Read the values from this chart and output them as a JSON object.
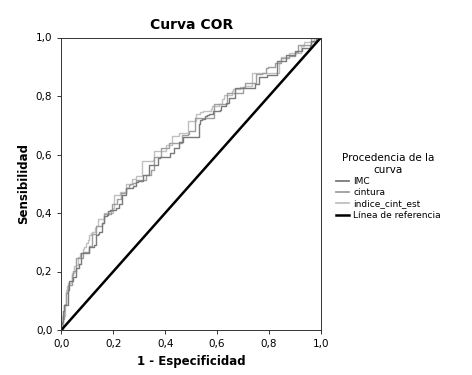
{
  "title": "Curva COR",
  "xlabel": "1 - Especificidad",
  "ylabel": "Sensibilidad",
  "legend_title": "Procedencia de la\ncurva",
  "legend_labels": [
    "IMC",
    "cintura",
    "indice_cint_est",
    "Línea de referencia"
  ],
  "imc_color": "#7a7a7a",
  "cintura_color": "#9e9e9e",
  "indice_color": "#c0c0c0",
  "ref_color": "#000000",
  "background_color": "#ffffff",
  "xlim": [
    0.0,
    1.0
  ],
  "ylim": [
    0.0,
    1.0
  ],
  "xticks": [
    0.0,
    0.2,
    0.4,
    0.6,
    0.8,
    1.0
  ],
  "yticks": [
    0.0,
    0.2,
    0.4,
    0.6,
    0.8,
    1.0
  ],
  "xticklabels": [
    "0,0",
    "0,2",
    "0,4",
    "0,6",
    "0,8",
    "1,0"
  ],
  "yticklabels": [
    "0,0",
    "0,2",
    "0,4",
    "0,6",
    "0,8",
    "1,0"
  ]
}
